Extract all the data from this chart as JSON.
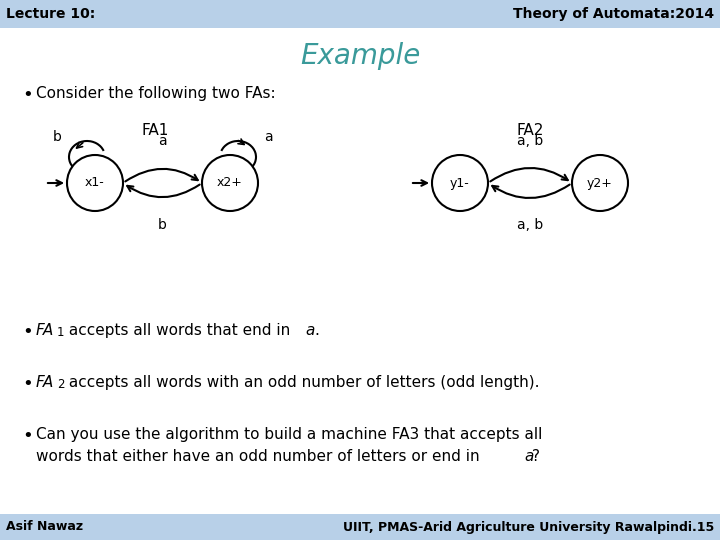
{
  "title": "Example",
  "header_left": "Lecture 10:",
  "header_right": "Theory of Automata:2014",
  "footer_left": "Asif Nawaz",
  "footer_right": "UIIT, PMAS-Arid Agriculture University Rawalpindi.",
  "footer_page": "15",
  "header_bg": "#b8d0e8",
  "footer_bg": "#b8d0e8",
  "slide_bg": "#ffffff",
  "title_color": "#3a9a9a",
  "header_text_color": "#000000",
  "body_text_color": "#000000",
  "bullet1": "Consider the following two FAs:",
  "fa1_label": "FA1",
  "fa2_label": "FA2",
  "fa1_state1": "x1-",
  "fa1_state2": "x2+",
  "fa2_state1": "y1-",
  "fa2_state2": "y2+"
}
